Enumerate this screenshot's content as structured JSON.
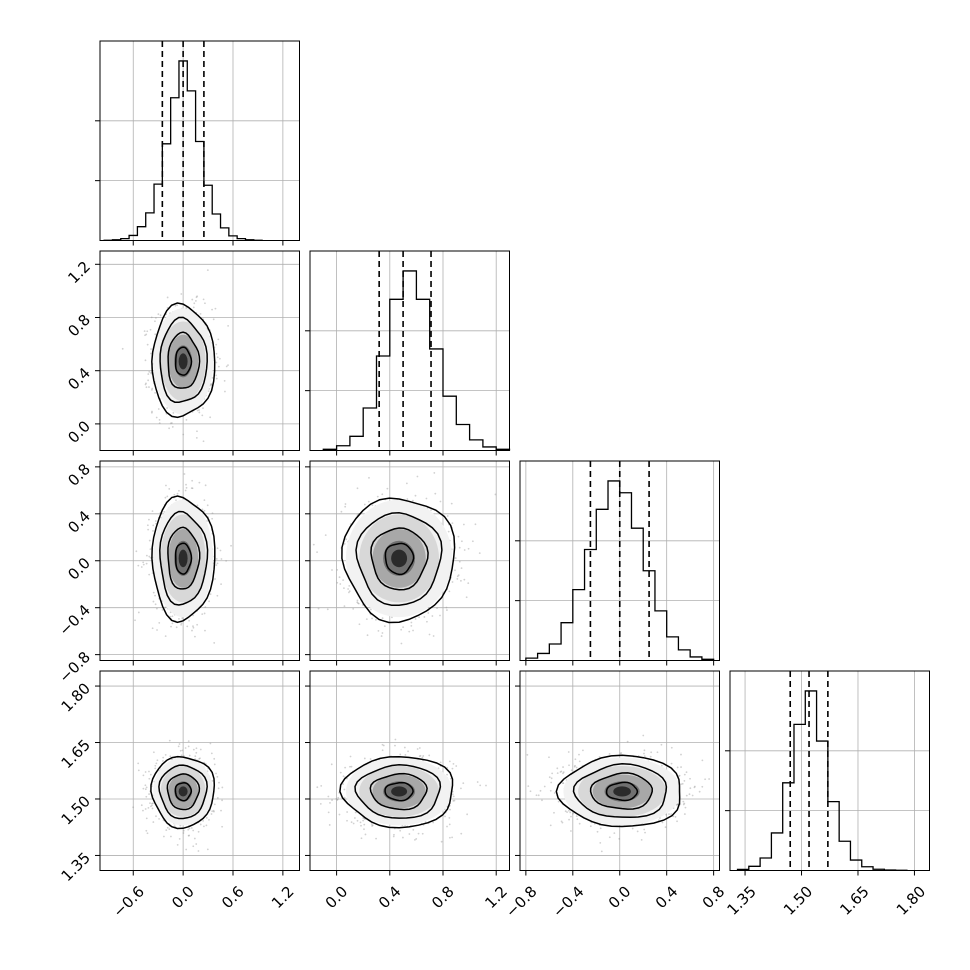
{
  "chart_data": {
    "type": "corner",
    "grid": true,
    "parameters": [
      {
        "range": [
          -1.0,
          1.4
        ],
        "ticks": [
          -0.6,
          0.0,
          0.6,
          1.2
        ],
        "tick_labels": [
          "−0.6",
          "0.0",
          "0.6",
          "1.2"
        ],
        "quantiles": [
          -0.25,
          0.0,
          0.25
        ],
        "mean": 0.0,
        "sd": 0.18
      },
      {
        "range": [
          -0.2,
          1.3
        ],
        "ticks": [
          0.0,
          0.4,
          0.8,
          1.2
        ],
        "tick_labels": [
          "0.0",
          "0.4",
          "0.8",
          "1.2"
        ],
        "quantiles": [
          0.32,
          0.5,
          0.71
        ],
        "mean": 0.5,
        "sd": 0.2
      },
      {
        "range": [
          -0.85,
          0.85
        ],
        "ticks": [
          -0.8,
          -0.4,
          0.0,
          0.4,
          0.8
        ],
        "tick_labels": [
          "−0.8",
          "−0.4",
          "0.0",
          "0.4",
          "0.8"
        ],
        "quantiles": [
          -0.25,
          0.0,
          0.25
        ],
        "mean": 0.0,
        "sd": 0.25
      },
      {
        "range": [
          1.31,
          1.84
        ],
        "ticks": [
          1.35,
          1.5,
          1.65,
          1.8
        ],
        "tick_labels": [
          "1.35",
          "1.50",
          "1.65",
          "1.80"
        ],
        "quantiles": [
          1.47,
          1.52,
          1.57
        ],
        "mean": 1.52,
        "sd": 0.045
      }
    ],
    "histograms": [
      {
        "param": 0,
        "bins_edges": [
          -0.95,
          -0.85,
          -0.75,
          -0.65,
          -0.55,
          -0.45,
          -0.35,
          -0.25,
          -0.15,
          -0.05,
          0.05,
          0.15,
          0.25,
          0.35,
          0.45,
          0.55,
          0.65,
          0.75,
          0.85,
          0.95
        ],
        "counts": [
          1,
          3,
          8,
          22,
          60,
          120,
          245,
          420,
          620,
          780,
          650,
          430,
          240,
          115,
          55,
          20,
          8,
          3,
          1
        ]
      },
      {
        "param": 1,
        "bins_edges": [
          -0.1,
          0.0,
          0.1,
          0.2,
          0.3,
          0.4,
          0.5,
          0.6,
          0.7,
          0.8,
          0.9,
          1.0,
          1.1,
          1.2,
          1.3
        ],
        "counts": [
          5,
          20,
          60,
          180,
          400,
          640,
          760,
          640,
          430,
          230,
          110,
          45,
          15,
          5
        ]
      },
      {
        "param": 2,
        "bins_edges": [
          -0.8,
          -0.7,
          -0.6,
          -0.5,
          -0.4,
          -0.3,
          -0.2,
          -0.1,
          0.0,
          0.1,
          0.2,
          0.3,
          0.4,
          0.5,
          0.6,
          0.7,
          0.8
        ],
        "counts": [
          10,
          30,
          70,
          160,
          300,
          470,
          640,
          760,
          710,
          560,
          380,
          210,
          100,
          45,
          15,
          5
        ]
      },
      {
        "param": 3,
        "bins_edges": [
          1.33,
          1.36,
          1.39,
          1.42,
          1.45,
          1.48,
          1.51,
          1.54,
          1.57,
          1.6,
          1.63,
          1.66,
          1.69,
          1.72,
          1.75,
          1.78
        ],
        "counts": [
          5,
          20,
          60,
          180,
          420,
          700,
          860,
          620,
          330,
          140,
          50,
          18,
          6,
          2,
          1
        ]
      }
    ],
    "pairs": [
      {
        "x_param": 0,
        "y_param": 1,
        "center": [
          0.0,
          0.47
        ]
      },
      {
        "x_param": 0,
        "y_param": 2,
        "center": [
          0.0,
          0.02
        ]
      },
      {
        "x_param": 1,
        "y_param": 2,
        "center": [
          0.47,
          0.02
        ]
      },
      {
        "x_param": 0,
        "y_param": 3,
        "center": [
          0.0,
          1.52
        ]
      },
      {
        "x_param": 1,
        "y_param": 3,
        "center": [
          0.47,
          1.52
        ]
      },
      {
        "x_param": 2,
        "y_param": 3,
        "center": [
          0.02,
          1.52
        ]
      }
    ],
    "contour_levels_sigma": [
      0.5,
      1.0,
      1.5,
      2.0
    ]
  }
}
